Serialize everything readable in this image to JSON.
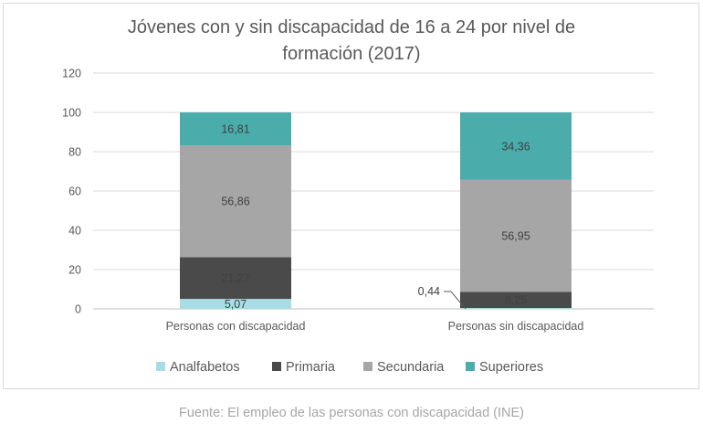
{
  "source": "Fuente: El empleo de las personas con discapacidad (INE)",
  "chart_data": {
    "type": "bar",
    "stacked": true,
    "title_lines": [
      "Jóvenes con y sin discapacidad de 16 a 24 por nivel de",
      "formación (2017)"
    ],
    "categories": [
      "Personas con discapacidad",
      "Personas sin discapacidad"
    ],
    "ylim": [
      0,
      120
    ],
    "yticks": [
      0,
      20,
      40,
      60,
      80,
      100,
      120
    ],
    "grid": true,
    "legend_position": "bottom",
    "series": [
      {
        "name": "Analfabetos",
        "color": "#a9dde6",
        "values": [
          5.07,
          0.44
        ],
        "labels": [
          "5,07",
          "0,44"
        ]
      },
      {
        "name": "Primaria",
        "color": "#4a4a4a",
        "values": [
          21.27,
          8.25
        ],
        "labels": [
          "21,27",
          "8,25"
        ]
      },
      {
        "name": "Secundaria",
        "color": "#a6a6a6",
        "values": [
          56.86,
          56.95
        ],
        "labels": [
          "56,86",
          "56,95"
        ]
      },
      {
        "name": "Superiores",
        "color": "#4bacac",
        "values": [
          16.81,
          34.36
        ],
        "labels": [
          "16,81",
          "34,36"
        ]
      }
    ]
  }
}
